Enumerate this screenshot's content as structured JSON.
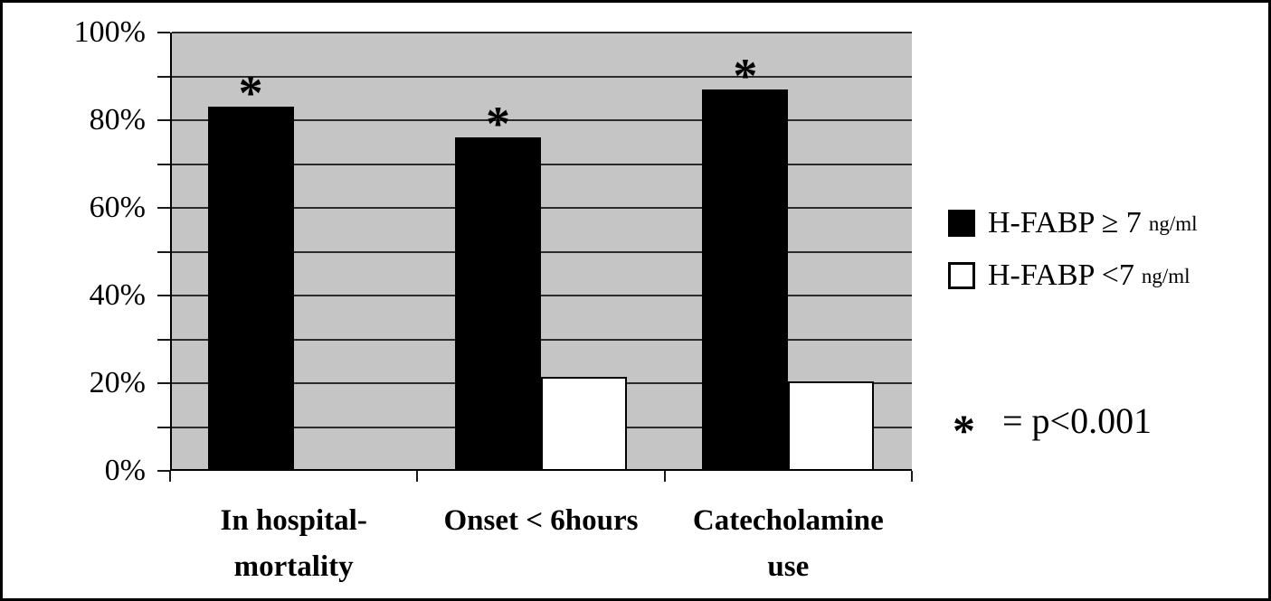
{
  "figure": {
    "background": "#ffffff",
    "border_color": "#000000",
    "plot_background": "#c5c5c5",
    "gridline_color": "#2b2b2b"
  },
  "chart_data": {
    "type": "bar",
    "title": "",
    "xlabel": "",
    "ylabel": "",
    "categories": [
      "In hospital-\nmortality",
      "Onset < 6hours",
      "Catecholamine\nuse"
    ],
    "series": [
      {
        "name": "H-FABP ≥ 7 ng/ml",
        "swatch": "filled",
        "color": "#000000",
        "values": [
          83,
          76,
          87
        ]
      },
      {
        "name": "H-FABP <7 ng/ml",
        "swatch": "open",
        "color": "#ffffff",
        "values": [
          0,
          21.5,
          20.5
        ]
      }
    ],
    "y_axis": {
      "min": 0,
      "max": 100,
      "minor_step": 10,
      "label_step": 20,
      "tick_labels": [
        "0%",
        "20%",
        "40%",
        "60%",
        "80%",
        "100%"
      ]
    },
    "grid": "horizontal-every-10pct",
    "legend_position": "right",
    "annotations": {
      "asterisk_symbol": "*",
      "asterisk_on_series": "H-FABP ≥ 7 ng/ml",
      "asterisk_categories": [
        true,
        true,
        true
      ],
      "note": "* = p<0.001"
    }
  },
  "legend": {
    "items": [
      {
        "label": "H-FABP ≥ 7",
        "unit": "ng/ml",
        "swatch": "filled"
      },
      {
        "label": "H-FABP <7",
        "unit": "ng/ml",
        "swatch": "open"
      }
    ]
  },
  "note": {
    "symbol": "*",
    "text": "= p<0.001"
  }
}
